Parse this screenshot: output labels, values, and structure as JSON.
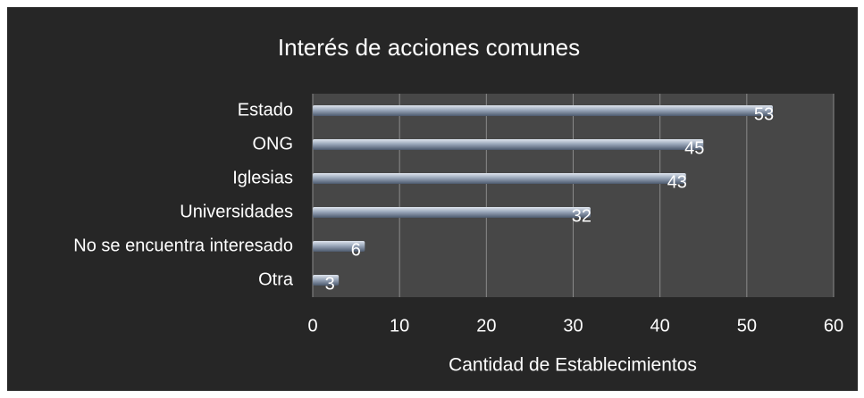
{
  "chart_data": {
    "type": "bar",
    "orientation": "horizontal",
    "title": "Interés de acciones comunes",
    "x_label": "Cantidad de Establecimientos",
    "categories": [
      "Estado",
      "ONG",
      "Iglesias",
      "Universidades",
      "No se encuentra interesado",
      "Otra"
    ],
    "values": [
      53,
      45,
      43,
      32,
      6,
      3
    ],
    "color": "#8e9bb0",
    "xlim": [
      0,
      60
    ],
    "xticks": [
      0,
      10,
      20,
      30,
      40,
      50,
      60
    ],
    "grid": true
  }
}
